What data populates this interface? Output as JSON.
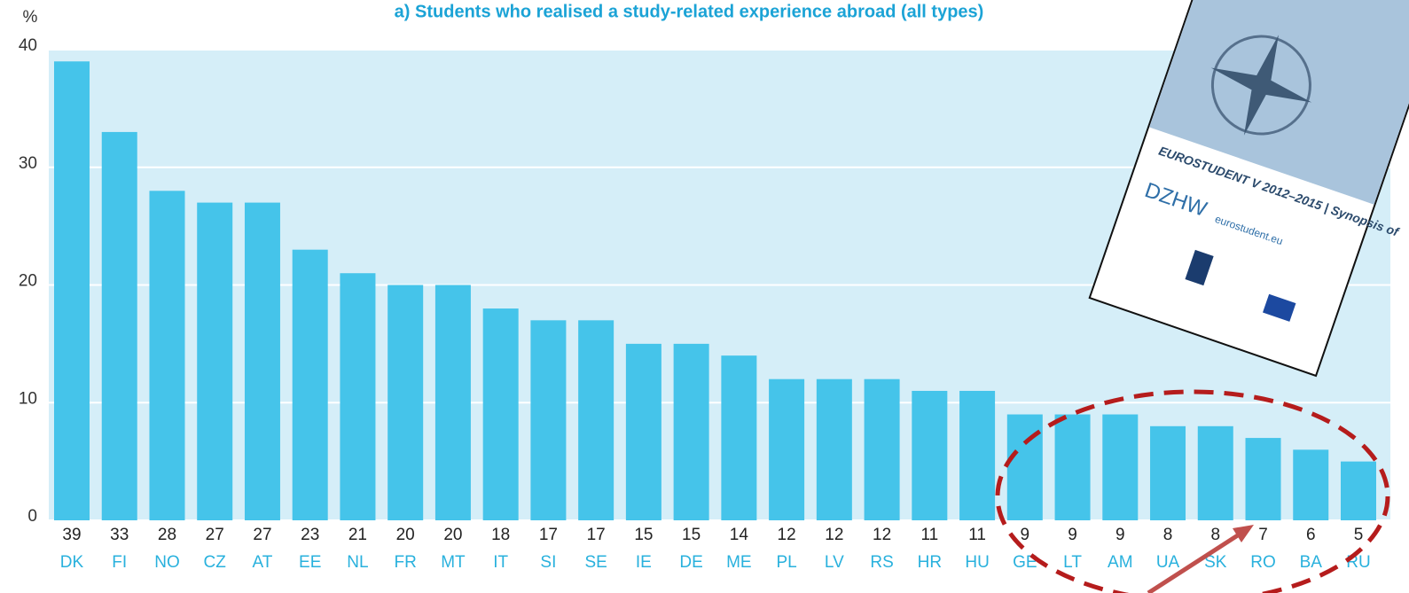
{
  "chart_data": {
    "type": "bar",
    "title": "a) Students who realised a study-related experience abroad (all types)",
    "y_label": "%",
    "categories": [
      "DK",
      "FI",
      "NO",
      "CZ",
      "AT",
      "EE",
      "NL",
      "FR",
      "MT",
      "IT",
      "SI",
      "SE",
      "IE",
      "DE",
      "ME",
      "PL",
      "LV",
      "RS",
      "HR",
      "HU",
      "GE",
      "LT",
      "AM",
      "UA",
      "SK",
      "RO",
      "BA",
      "RU"
    ],
    "values": [
      39,
      33,
      28,
      27,
      27,
      23,
      21,
      20,
      20,
      18,
      17,
      17,
      15,
      15,
      14,
      12,
      12,
      12,
      11,
      11,
      9,
      9,
      9,
      8,
      8,
      7,
      6,
      5
    ],
    "color": "#45c4ea",
    "background": "#d5eef8",
    "ylim": [
      0,
      40
    ],
    "yticks": [
      0,
      10,
      20,
      30,
      40
    ],
    "grid": true
  },
  "inset": {
    "cover_title": "EUROSTUDENT V 2012–2015 | Synopsis of",
    "logo": "DZHW",
    "site": "eurostudent.eu"
  }
}
